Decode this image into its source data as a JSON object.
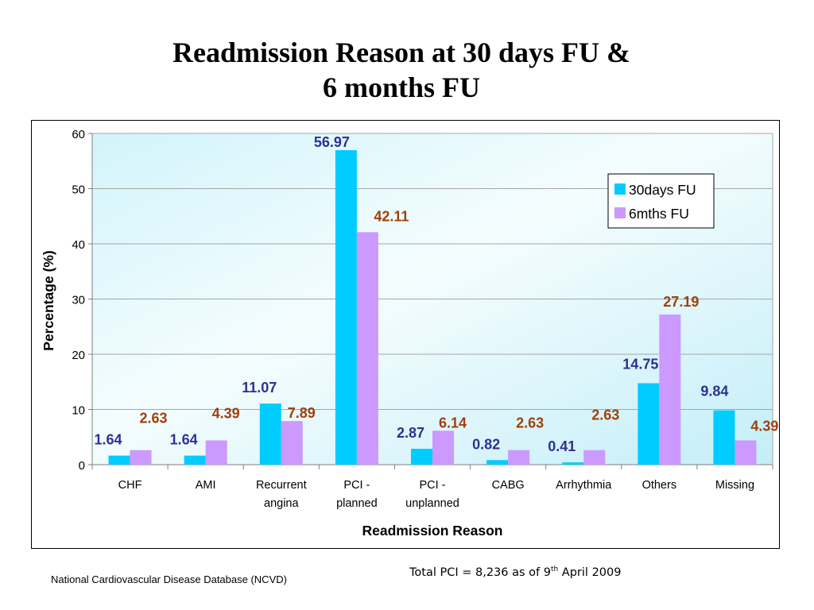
{
  "slide": {
    "title_line1": "Readmission Reason at 30 days FU &",
    "title_line2": "6 months FU",
    "footer_source": "National Cardiovascular Disease Database (NCVD)",
    "footer_total_prefix": "Total PCI = 8,236 as of  9",
    "footer_total_sup": "th",
    "footer_total_suffix": " April 2009"
  },
  "chart_data": {
    "type": "bar",
    "title": "",
    "xlabel": "Readmission Reason",
    "ylabel": "Percentage (%)",
    "ylim": [
      0,
      60
    ],
    "yticks": [
      0,
      10,
      20,
      30,
      40,
      50,
      60
    ],
    "grid": true,
    "legend_position": "top-right",
    "categories": [
      [
        "CHF"
      ],
      [
        "AMI"
      ],
      [
        "Recurrent",
        "angina"
      ],
      [
        "PCI -",
        "planned"
      ],
      [
        "PCI -",
        "unplanned"
      ],
      [
        "CABG"
      ],
      [
        "Arrhythmia"
      ],
      [
        "Others"
      ],
      [
        "Missing"
      ]
    ],
    "series": [
      {
        "name": "30days FU",
        "color": "#00ccff",
        "label_color": "#2e3192",
        "values": [
          1.64,
          1.64,
          11.07,
          56.97,
          2.87,
          0.82,
          0.41,
          14.75,
          9.84
        ]
      },
      {
        "name": "6mths FU",
        "color": "#cc99ff",
        "label_color": "#a0400a",
        "values": [
          2.63,
          4.39,
          7.89,
          42.11,
          6.14,
          2.63,
          2.63,
          27.19,
          4.39
        ]
      }
    ]
  }
}
